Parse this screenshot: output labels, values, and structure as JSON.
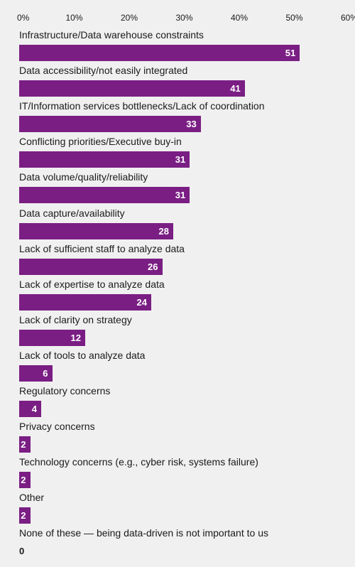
{
  "chart_data": {
    "type": "bar",
    "orientation": "horizontal",
    "xlim": [
      0,
      60
    ],
    "ticks": [
      "0%",
      "10%",
      "20%",
      "30%",
      "40%",
      "50%",
      "60%"
    ],
    "tick_values": [
      0,
      10,
      20,
      30,
      40,
      50,
      60
    ],
    "categories": [
      "Infrastructure/Data warehouse constraints",
      "Data accessibility/not easily integrated",
      "IT/Information services bottlenecks/Lack of coordination",
      "Conflicting priorities/Executive buy-in",
      "Data volume/quality/reliability",
      "Data capture/availability",
      "Lack of sufficient staff to analyze data",
      "Lack of expertise to analyze data",
      "Lack of clarity on strategy",
      "Lack of tools to analyze data",
      "Regulatory concerns",
      "Privacy concerns",
      "Technology concerns (e.g., cyber risk, systems failure)",
      "Other",
      "None of these — being data-driven is not important to us"
    ],
    "values": [
      51,
      41,
      33,
      31,
      31,
      28,
      26,
      24,
      12,
      6,
      4,
      2,
      2,
      2,
      0
    ],
    "bar_color": "#7a1e84",
    "grid": false
  }
}
